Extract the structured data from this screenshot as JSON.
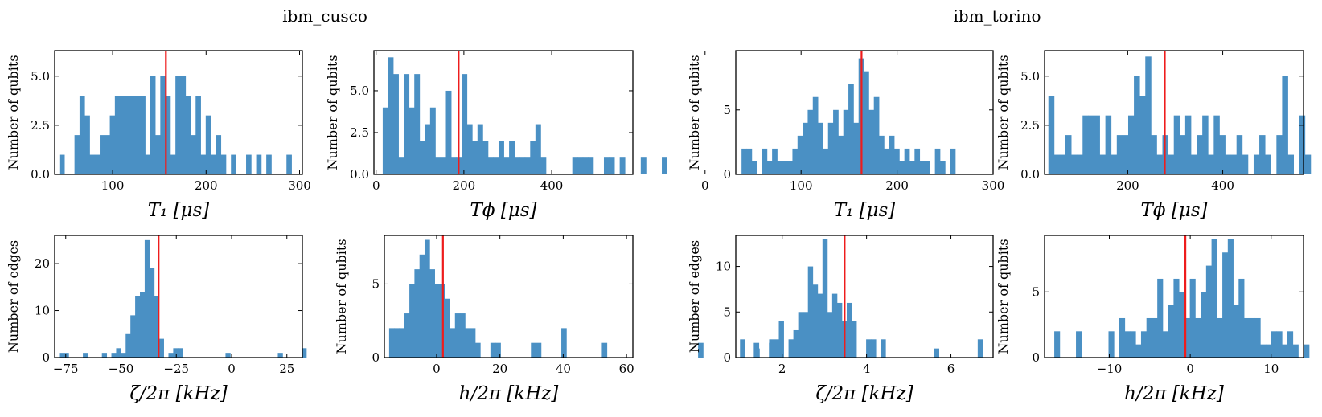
{
  "groups": [
    {
      "title": "ibm_cusco"
    },
    {
      "title": "ibm_torino"
    }
  ],
  "colors": {
    "bar": "#4a90c4",
    "median": "#ee1c1c",
    "frame": "#000000"
  },
  "chart_data": [
    {
      "id": "cusco-t1",
      "type": "bar",
      "group": "ibm_cusco",
      "xlabel": "T₁ [μs]",
      "ylabel": "Number of qubits",
      "xlim": [
        38,
        303
      ],
      "ylim": [
        0,
        6.3
      ],
      "xticks": [
        100,
        200,
        300
      ],
      "xtick_labels": [
        "100",
        "200",
        "300"
      ],
      "yticks": [
        0,
        2.5,
        5
      ],
      "ytick_labels": [
        "0.0",
        "2.5",
        "5.0"
      ],
      "bin_start": 43,
      "bin_width": 5.4,
      "counts": [
        1,
        0,
        0,
        2,
        4,
        3,
        1,
        1,
        2,
        2,
        3,
        4,
        4,
        4,
        4,
        4,
        4,
        1,
        5,
        2,
        5,
        4,
        1,
        5,
        5,
        4,
        2,
        4,
        1,
        3,
        1,
        2,
        1,
        0,
        1,
        0,
        0,
        1,
        0,
        1,
        0,
        1,
        0,
        0,
        0,
        1,
        0
      ],
      "median": 157,
      "ymax_line": 6.3
    },
    {
      "id": "cusco-tphi",
      "type": "bar",
      "group": "ibm_cusco",
      "xlabel": "Tϕ [μs]",
      "ylabel": "Number of qubits",
      "xlim": [
        -5,
        585
      ],
      "ylim": [
        0,
        7.4
      ],
      "xticks": [
        0,
        200,
        400
      ],
      "xtick_labels": [
        "0",
        "200",
        "400"
      ],
      "yticks": [
        0,
        2.5,
        5
      ],
      "ytick_labels": [
        "0.0",
        "2.5",
        "5.0"
      ],
      "bin_start": 15,
      "bin_width": 12,
      "counts": [
        4,
        7,
        6,
        1,
        6,
        4,
        6,
        2,
        3,
        4,
        1,
        1,
        5,
        1,
        1,
        6,
        3,
        2,
        3,
        2,
        1,
        1,
        2,
        1,
        2,
        1,
        1,
        1,
        2,
        3,
        1,
        0,
        0,
        0,
        0,
        0,
        1,
        1,
        1,
        1,
        0,
        0,
        1,
        1,
        0,
        1,
        0,
        0,
        0,
        1,
        0,
        0,
        0,
        1,
        0
      ],
      "median": 188,
      "ymax_line": 7.4
    },
    {
      "id": "torino-t1",
      "type": "bar",
      "group": "ibm_torino",
      "xlabel": "T₁ [μs]",
      "ylabel": "Number of qubits",
      "xlim": [
        32,
        300
      ],
      "ylim": [
        0,
        9.6
      ],
      "xticks": [
        0,
        100,
        200,
        300
      ],
      "xtick_labels": [
        "0",
        "100",
        "200",
        "300"
      ],
      "yticks": [
        0,
        5
      ],
      "ytick_labels": [
        "0",
        "5"
      ],
      "bin_start": 38,
      "bin_width": 5.3,
      "counts": [
        2,
        2,
        1,
        0,
        2,
        1,
        2,
        1,
        1,
        1,
        2,
        3,
        4,
        5,
        6,
        4,
        2,
        4,
        5,
        3,
        5,
        7,
        4,
        9,
        8,
        5,
        6,
        3,
        2,
        3,
        2,
        1,
        2,
        1,
        2,
        1,
        1,
        0,
        2,
        1,
        0,
        2,
        0
      ],
      "median": 163,
      "ymax_line": 9.6
    },
    {
      "id": "torino-tphi",
      "type": "bar",
      "group": "ibm_torino",
      "xlabel": "Tϕ [μs]",
      "ylabel": "Number of qubits",
      "xlim": [
        25,
        570
      ],
      "ylim": [
        0,
        6.3
      ],
      "xticks": [
        200,
        400
      ],
      "xtick_labels": [
        "200",
        "400"
      ],
      "yticks": [
        0,
        2.5,
        5
      ],
      "ytick_labels": [
        "0.0",
        "2.5",
        "5.0"
      ],
      "bin_start": 33,
      "bin_width": 12,
      "counts": [
        4,
        1,
        1,
        2,
        1,
        1,
        3,
        3,
        3,
        1,
        3,
        1,
        2,
        2,
        3,
        5,
        4,
        6,
        2,
        1,
        2,
        1,
        3,
        2,
        3,
        1,
        2,
        3,
        1,
        3,
        2,
        1,
        1,
        2,
        1,
        0,
        1,
        2,
        1,
        0,
        2,
        5,
        1,
        0,
        3,
        1,
        0,
        0
      ],
      "median": 278,
      "ymax_line": 6.3
    },
    {
      "id": "cusco-zeta",
      "type": "bar",
      "group": "ibm_cusco",
      "xlabel": "ζ/2π [kHz]",
      "ylabel": "Number of edges",
      "xlim": [
        -80,
        32
      ],
      "ylim": [
        0,
        26
      ],
      "xticks": [
        -75,
        -50,
        -25,
        0,
        25
      ],
      "xtick_labels": [
        "−75",
        "−50",
        "−25",
        "0",
        "25"
      ],
      "yticks": [
        0,
        10,
        20
      ],
      "ytick_labels": [
        "0",
        "10",
        "20"
      ],
      "bin_start": -78,
      "bin_width": 2.15,
      "counts": [
        1,
        1,
        0,
        0,
        0,
        1,
        0,
        0,
        0,
        1,
        0,
        1,
        2,
        1,
        5,
        9,
        13,
        14,
        25,
        19,
        13,
        4,
        0,
        1,
        2,
        2,
        0,
        0,
        0,
        0,
        0,
        0,
        0,
        0,
        0,
        1,
        0,
        0,
        0,
        0,
        0,
        0,
        0,
        0,
        0,
        0,
        1,
        0,
        0,
        0,
        0,
        2
      ],
      "median": -33,
      "ymax_line": 26
    },
    {
      "id": "cusco-h",
      "type": "bar",
      "group": "ibm_cusco",
      "xlabel": "h/2π [kHz]",
      "ylabel": "Number of qubits",
      "xlim": [
        -16.5,
        62
      ],
      "ylim": [
        0,
        8.3
      ],
      "xticks": [
        0,
        20,
        40,
        60
      ],
      "xtick_labels": [
        "0",
        "20",
        "40",
        "60"
      ],
      "yticks": [
        0,
        5
      ],
      "ytick_labels": [
        "0",
        "5"
      ],
      "bin_start": -15,
      "bin_width": 1.6,
      "counts": [
        2,
        2,
        2,
        3,
        5,
        6,
        7,
        8,
        6,
        5,
        5,
        4,
        2,
        3,
        3,
        2,
        2,
        1,
        0,
        0,
        1,
        1,
        0,
        0,
        0,
        0,
        0,
        0,
        1,
        1,
        0,
        0,
        0,
        0,
        2,
        0,
        0,
        0,
        0,
        0,
        0,
        0,
        1,
        0,
        0,
        0,
        0,
        0,
        0,
        0,
        0,
        0,
        0,
        0,
        0,
        0,
        0,
        0,
        0,
        0,
        0,
        1,
        0,
        0,
        0,
        0,
        0,
        0,
        0,
        0,
        0,
        0,
        1,
        0,
        0,
        1
      ],
      "median": 2,
      "ymax_line": 8.3
    },
    {
      "id": "torino-zeta",
      "type": "bar",
      "group": "ibm_torino",
      "xlabel": "ζ/2π [kHz]",
      "ylabel": "Number of edges",
      "xlim": [
        0.9,
        7.0
      ],
      "ylim": [
        0,
        13.4
      ],
      "xticks": [
        2,
        4,
        6
      ],
      "xtick_labels": [
        "2",
        "4",
        "6"
      ],
      "yticks": [
        0,
        5,
        10
      ],
      "ytick_labels": [
        "0",
        "5",
        "10"
      ],
      "bin_start": 1.0,
      "bin_width": 0.115,
      "counts": [
        2,
        0,
        0,
        1,
        0,
        0,
        2,
        2,
        4,
        0,
        2,
        3,
        5,
        5,
        10,
        8,
        7,
        13,
        5,
        7,
        6,
        4,
        6,
        4,
        0,
        0,
        2,
        2,
        0,
        2,
        0,
        0,
        0,
        0,
        0,
        0,
        0,
        0,
        0,
        0,
        1,
        0,
        0,
        0,
        0,
        0,
        0,
        0,
        0,
        2
      ],
      "median": 3.48,
      "ymax_line": 13.4
    },
    {
      "id": "torino-h",
      "type": "bar",
      "group": "ibm_torino",
      "xlabel": "h/2π [kHz]",
      "ylabel": "Number of qubits",
      "xlim": [
        -18,
        14
      ],
      "ylim": [
        0,
        9.3
      ],
      "xticks": [
        -10,
        0,
        10
      ],
      "xtick_labels": [
        "−10",
        "0",
        "10"
      ],
      "yticks": [
        0,
        5
      ],
      "ytick_labels": [
        "0",
        "5"
      ],
      "bin_start": -16.8,
      "bin_width": 0.67,
      "counts": [
        2,
        0,
        0,
        0,
        2,
        0,
        0,
        0,
        0,
        0,
        2,
        0,
        3,
        2,
        2,
        1,
        2,
        3,
        3,
        6,
        2,
        4,
        6,
        5,
        3,
        6,
        3,
        5,
        7,
        9,
        3,
        8,
        9,
        4,
        6,
        3,
        3,
        3,
        1,
        1,
        2,
        2,
        1,
        2,
        1,
        0,
        1
      ],
      "median": -0.6,
      "ymax_line": 9.3
    }
  ]
}
